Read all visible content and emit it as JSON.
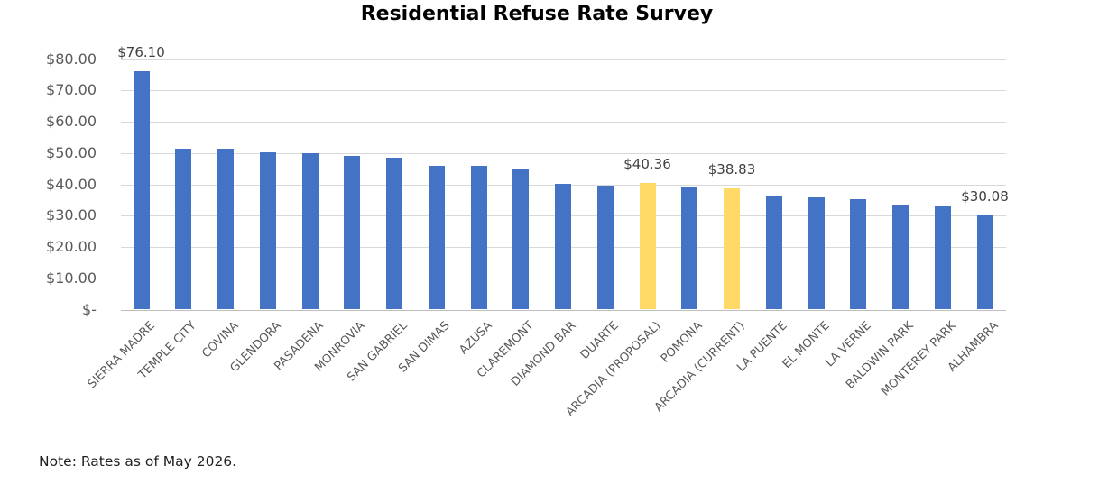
{
  "title": "Residential Refuse Rate Survey",
  "note": "Note: Rates as of May 2026.",
  "colors": {
    "bar_default": "#4472C4",
    "bar_highlight": "#FFD966",
    "gridline": "#D9D9D9",
    "axis_line": "#BFBFBF",
    "axis_text": "#595959",
    "data_label_text": "#404040",
    "title_text": "#000000",
    "note_text": "#1F1F1F"
  },
  "chart_data": {
    "type": "bar",
    "title": "Residential Refuse Rate Survey",
    "xlabel": "",
    "ylabel": "",
    "ylim": [
      0,
      80
    ],
    "ytick_step": 10,
    "ytick_labels": [
      "$-",
      "$10.00",
      "$20.00",
      "$30.00",
      "$40.00",
      "$50.00",
      "$60.00",
      "$70.00",
      "$80.00"
    ],
    "grid": true,
    "legend": "none",
    "categories": [
      "SIERRA MADRE",
      "TEMPLE CITY",
      "COVINA",
      "GLENDORA",
      "PASADENA",
      "MONROVIA",
      "SAN GABRIEL",
      "SAN DIMAS",
      "AZUSA",
      "CLAREMONT",
      "DIAMOND BAR",
      "DUARTE",
      "ARCADIA (PROPOSAL)",
      "POMONA",
      "ARCADIA (CURRENT)",
      "LA PUENTE",
      "EL MONTE",
      "LA VERNE",
      "BALDWIN PARK",
      "MONTEREY PARK",
      "ALHAMBRA"
    ],
    "values": [
      76.1,
      51.5,
      51.4,
      50.2,
      49.9,
      49.2,
      48.5,
      46.0,
      45.9,
      44.8,
      40.1,
      39.7,
      40.36,
      39.0,
      38.83,
      36.5,
      36.0,
      35.2,
      33.3,
      33.0,
      30.08
    ],
    "data_labels": {
      "0": "$76.10",
      "12": "$40.36",
      "14": "$38.83",
      "20": "$30.08"
    },
    "highlight_indices": [
      12,
      14
    ]
  }
}
